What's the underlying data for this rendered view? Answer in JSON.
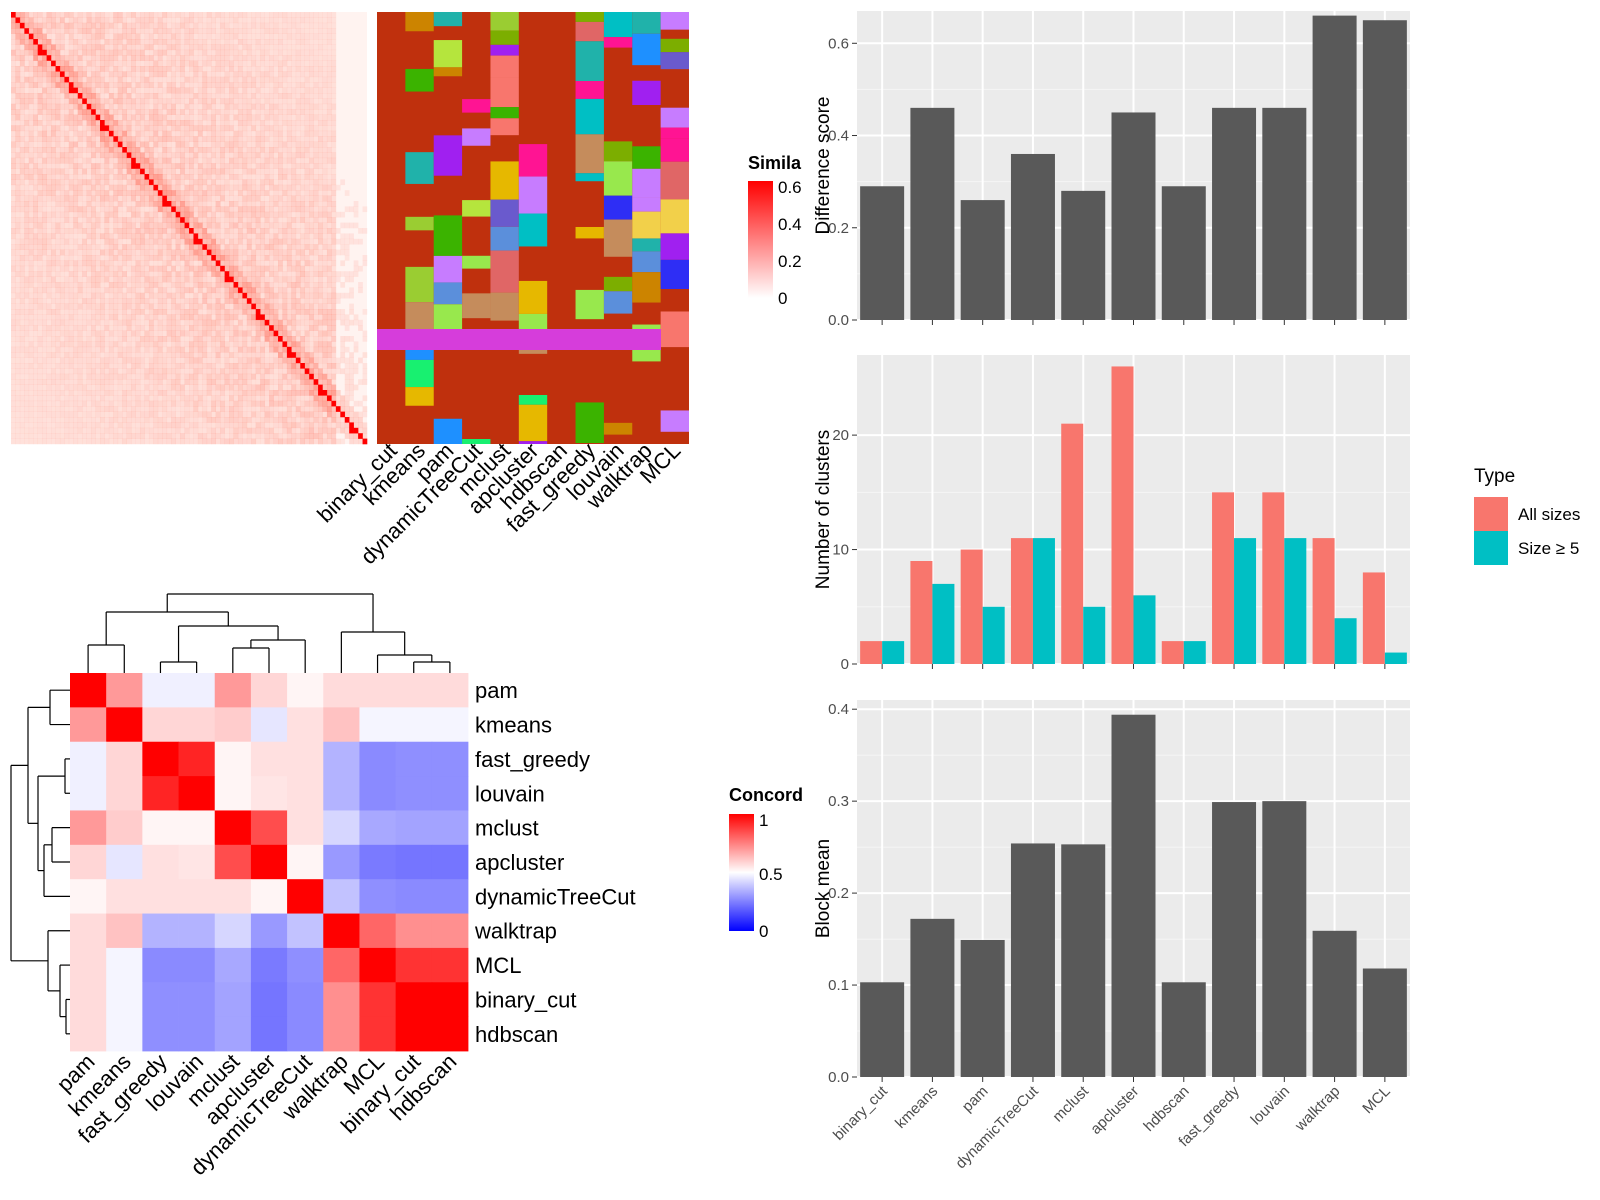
{
  "methods": [
    "binary_cut",
    "kmeans",
    "pam",
    "dynamicTreeCut",
    "mclust",
    "apcluster",
    "hdbscan",
    "fast_greedy",
    "louvain",
    "walktrap",
    "MCL"
  ],
  "similarity_legend": {
    "title": "Simila",
    "ticks": [
      "0.6",
      "0.4",
      "0.2",
      "0"
    ]
  },
  "concordance_legend": {
    "title": "Concord",
    "ticks": [
      "1",
      "0.5",
      "0"
    ]
  },
  "concordance_order": [
    "pam",
    "kmeans",
    "fast_greedy",
    "louvain",
    "mclust",
    "apcluster",
    "dynamicTreeCut",
    "walktrap",
    "MCL",
    "binary_cut",
    "hdbscan"
  ],
  "type_legend": {
    "title": "Type",
    "items": [
      {
        "label": "All sizes",
        "color": "#F8766D"
      },
      {
        "label": "Size ≥ 5",
        "color": "#00BFC4"
      }
    ]
  },
  "colors": {
    "panel_bg": "#EBEBEB",
    "bar": "#595959",
    "heat_high": "#FF0000",
    "heat_mid": "#FFFFFF",
    "heat_low": "#0000FF",
    "cluster_bg": "#BF300D",
    "purple_band": "#D63DDB"
  },
  "chart_data": [
    {
      "type": "bar",
      "categories": [
        "binary_cut",
        "kmeans",
        "pam",
        "dynamicTreeCut",
        "mclust",
        "apcluster",
        "hdbscan",
        "fast_greedy",
        "louvain",
        "walktrap",
        "MCL"
      ],
      "values": [
        0.29,
        0.46,
        0.26,
        0.36,
        0.28,
        0.45,
        0.29,
        0.46,
        0.46,
        0.66,
        0.65
      ],
      "ylabel": "Difference score",
      "ylim": [
        0,
        0.67
      ],
      "yticks": [
        "0.0",
        "0.2",
        "0.4",
        "0.6"
      ]
    },
    {
      "type": "bar",
      "categories": [
        "binary_cut",
        "kmeans",
        "pam",
        "dynamicTreeCut",
        "mclust",
        "apcluster",
        "hdbscan",
        "fast_greedy",
        "louvain",
        "walktrap",
        "MCL"
      ],
      "series": [
        {
          "name": "All sizes",
          "values": [
            2,
            9,
            10,
            11,
            21,
            26,
            2,
            15,
            15,
            11,
            8
          ]
        },
        {
          "name": "Size ≥ 5",
          "values": [
            2,
            7,
            5,
            11,
            5,
            6,
            2,
            11,
            11,
            4,
            1
          ]
        }
      ],
      "ylabel": "Number of clusters",
      "ylim": [
        0,
        27
      ],
      "yticks": [
        "0",
        "10",
        "20"
      ]
    },
    {
      "type": "bar",
      "categories": [
        "binary_cut",
        "kmeans",
        "pam",
        "dynamicTreeCut",
        "mclust",
        "apcluster",
        "hdbscan",
        "fast_greedy",
        "louvain",
        "walktrap",
        "MCL"
      ],
      "values": [
        0.103,
        0.172,
        0.149,
        0.254,
        0.253,
        0.394,
        0.103,
        0.299,
        0.3,
        0.159,
        0.118
      ],
      "ylabel": "Block mean",
      "ylim": [
        0,
        0.41
      ],
      "yticks": [
        "0.0",
        "0.1",
        "0.2",
        "0.3",
        "0.4"
      ]
    },
    {
      "type": "heatmap",
      "rows": [
        "pam",
        "kmeans",
        "fast_greedy",
        "louvain",
        "mclust",
        "apcluster",
        "dynamicTreeCut",
        "walktrap",
        "MCL",
        "binary_cut",
        "hdbscan"
      ],
      "columns": [
        "pam",
        "kmeans",
        "fast_greedy",
        "louvain",
        "mclust",
        "apcluster",
        "dynamicTreeCut",
        "walktrap",
        "MCL",
        "binary_cut",
        "hdbscan"
      ],
      "values": [
        [
          1.0,
          0.7,
          0.47,
          0.47,
          0.7,
          0.58,
          0.52,
          0.57,
          0.57,
          0.57,
          0.57
        ],
        [
          0.7,
          1.0,
          0.58,
          0.58,
          0.6,
          0.45,
          0.56,
          0.62,
          0.48,
          0.48,
          0.48
        ],
        [
          0.47,
          0.58,
          1.0,
          0.93,
          0.52,
          0.56,
          0.56,
          0.35,
          0.27,
          0.28,
          0.28
        ],
        [
          0.47,
          0.58,
          0.93,
          1.0,
          0.52,
          0.55,
          0.56,
          0.35,
          0.27,
          0.28,
          0.28
        ],
        [
          0.7,
          0.6,
          0.52,
          0.52,
          1.0,
          0.85,
          0.56,
          0.42,
          0.33,
          0.32,
          0.32
        ],
        [
          0.58,
          0.45,
          0.56,
          0.55,
          0.85,
          1.0,
          0.52,
          0.3,
          0.24,
          0.23,
          0.23
        ],
        [
          0.52,
          0.56,
          0.56,
          0.56,
          0.56,
          0.52,
          1.0,
          0.38,
          0.28,
          0.27,
          0.27
        ],
        [
          0.57,
          0.62,
          0.35,
          0.35,
          0.42,
          0.3,
          0.38,
          1.0,
          0.8,
          0.72,
          0.72
        ],
        [
          0.57,
          0.48,
          0.27,
          0.27,
          0.33,
          0.24,
          0.28,
          0.8,
          1.0,
          0.9,
          0.9
        ],
        [
          0.57,
          0.48,
          0.28,
          0.28,
          0.32,
          0.23,
          0.27,
          0.72,
          0.9,
          1.0,
          1.0
        ],
        [
          0.57,
          0.48,
          0.28,
          0.28,
          0.32,
          0.23,
          0.27,
          0.72,
          0.9,
          1.0,
          1.0
        ]
      ],
      "color_range": [
        0,
        1
      ]
    }
  ]
}
